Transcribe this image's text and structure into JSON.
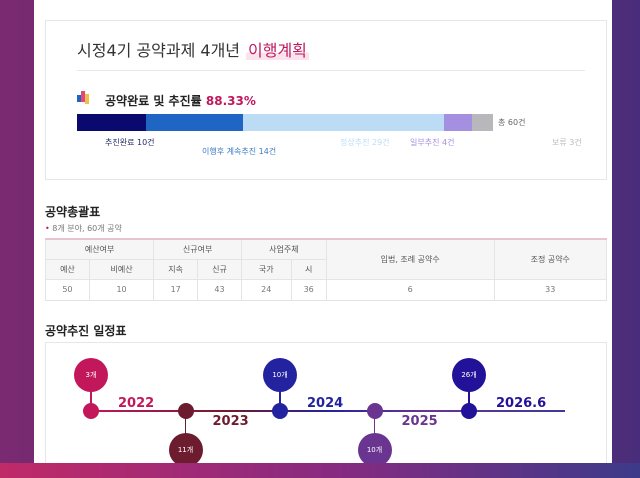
{
  "header": {
    "title": "시정4기 공약과제 4개년",
    "title_highlight": "이행계획"
  },
  "progress": {
    "label": "공약완료 및 추진률",
    "rate": "88.33%",
    "total": "총 60건",
    "segments": [
      {
        "label": "추진완료 10건",
        "count": 10,
        "color": "#0a0a6e"
      },
      {
        "label": "이행후 계속추진 14건",
        "count": 14,
        "color": "#1f66c4"
      },
      {
        "label": "정상추진 29건",
        "count": 29,
        "color": "#bcdcf6"
      },
      {
        "label": "일부추진 4건",
        "count": 4,
        "color": "#a58fe0"
      },
      {
        "label": "보류 3건",
        "count": 3,
        "color": "#b8b8bc"
      }
    ]
  },
  "summary": {
    "title": "공약총괄표",
    "note": "8개 분야, 60개 공약",
    "groups": [
      "예산여부",
      "신규여부",
      "사업주체",
      "입법, 조례 공약수",
      "조정 공약수"
    ],
    "sub": [
      "예산",
      "비예산",
      "지속",
      "신규",
      "국가",
      "시"
    ],
    "values": [
      "50",
      "10",
      "17",
      "43",
      "24",
      "36",
      "6",
      "33"
    ]
  },
  "schedule": {
    "title": "공약추진 일정표",
    "milestones": [
      {
        "count": "3개",
        "year": "2022",
        "color": "#c2185b"
      },
      {
        "count": "11개",
        "year": "2023",
        "color": "#6d1b2e"
      },
      {
        "count": "10개",
        "year": "2024",
        "color": "#2323a0"
      },
      {
        "count": "10개",
        "year": "2025",
        "color": "#6a3590"
      },
      {
        "count": "26개",
        "year": "2026.6",
        "color": "#22129a"
      }
    ]
  }
}
